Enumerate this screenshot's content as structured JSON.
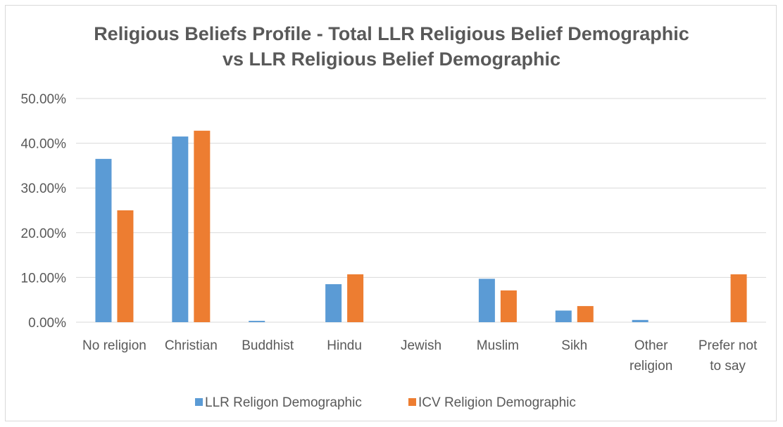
{
  "chart_data": {
    "type": "bar",
    "title": [
      "Religious Beliefs Profile - Total LLR Religious Belief Demographic",
      "vs LLR Religious Belief Demographic"
    ],
    "categories": [
      [
        "No religion"
      ],
      [
        "Christian"
      ],
      [
        "Buddhist"
      ],
      [
        "Hindu"
      ],
      [
        "Jewish"
      ],
      [
        "Muslim"
      ],
      [
        "Sikh"
      ],
      [
        "Other",
        "religion"
      ],
      [
        "Prefer not",
        "to say"
      ]
    ],
    "series": [
      {
        "name": "LLR Religon Demographic",
        "color": "#5b9bd5",
        "values": [
          36.5,
          41.5,
          0.3,
          8.5,
          0.0,
          9.7,
          2.6,
          0.5,
          0.0
        ]
      },
      {
        "name": "ICV Religion Demographic",
        "color": "#ed7d31",
        "values": [
          25.0,
          42.8,
          0.0,
          10.7,
          0.0,
          7.1,
          3.6,
          0.0,
          10.7
        ]
      }
    ],
    "ylim": [
      0,
      50
    ],
    "yticks": [
      "0.00%",
      "10.00%",
      "20.00%",
      "30.00%",
      "40.00%",
      "50.00%"
    ],
    "ytick_values": [
      0,
      10,
      20,
      30,
      40,
      50
    ],
    "grid": true,
    "legend_position": "bottom"
  }
}
